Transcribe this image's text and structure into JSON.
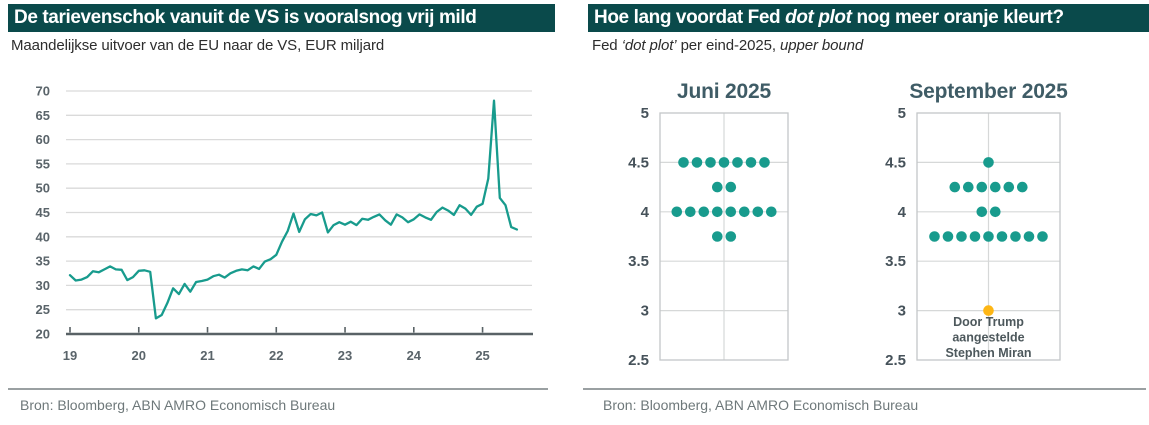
{
  "colors": {
    "header_bg": "#0a4a4b",
    "accent_teal": "#189b8d",
    "highlight_orange": "#fdb615",
    "gridline": "#dadada",
    "axis_line": "#59626 6",
    "axis_text": "#5a646a",
    "plot_title_text": "#3f5c66"
  },
  "left_panel": {
    "title": "De tarievenschok vanuit de VS is vooralsnog vrij mild",
    "subtitle": "Maandelijkse uitvoer van de EU naar de VS, EUR miljard",
    "source": "Bron: Bloomberg, ABN AMRO Economisch Bureau"
  },
  "right_panel": {
    "title_prefix": "Hoe lang voordat Fed ",
    "title_italic": "dot plot",
    "title_suffix": " nog meer oranje kleurt?",
    "subtitle_prefix": "Fed ",
    "subtitle_italic1": "‘dot plot’",
    "subtitle_mid": " per eind-2025, ",
    "subtitle_italic2": "upper bound",
    "source": "Bron: Bloomberg, ABN AMRO Economisch Bureau"
  },
  "chart_data": [
    {
      "id": "eu-exports-line",
      "type": "line",
      "title": "Maandelijkse uitvoer van de EU naar de VS, EUR miljard",
      "unit": "EUR miljard",
      "x_start": "2019-01",
      "x_end": "2025-07",
      "xticks": [
        "19",
        "20",
        "21",
        "22",
        "23",
        "24",
        "25"
      ],
      "yticks": [
        20,
        25,
        30,
        35,
        40,
        45,
        50,
        55,
        60,
        65,
        70
      ],
      "ylim": [
        20,
        70
      ],
      "grid": "horizontal",
      "legend": "none",
      "line_color": "#189b8d",
      "values": [
        32.1,
        31.0,
        31.2,
        31.7,
        32.9,
        32.7,
        33.3,
        33.9,
        33.3,
        33.2,
        31.1,
        31.7,
        33.0,
        33.1,
        32.8,
        23.2,
        23.9,
        26.4,
        29.4,
        28.2,
        30.3,
        28.7,
        30.7,
        30.9,
        31.2,
        31.9,
        32.2,
        31.6,
        32.5,
        33.0,
        33.3,
        33.1,
        33.9,
        33.4,
        34.9,
        35.4,
        36.3,
        39.0,
        41.2,
        44.8,
        41.0,
        43.6,
        44.7,
        44.4,
        45.0,
        40.9,
        42.4,
        43.0,
        42.5,
        43.1,
        42.4,
        43.7,
        43.5,
        44.1,
        44.6,
        43.4,
        42.5,
        44.6,
        44.0,
        43.0,
        43.6,
        44.6,
        44.0,
        43.5,
        45.1,
        46.0,
        45.4,
        44.5,
        46.5,
        45.8,
        44.5,
        46.2,
        46.8,
        52.0,
        68.0,
        48.0,
        46.5,
        42.0,
        41.5
      ]
    },
    {
      "id": "fed-dot-plot-juni-2025",
      "type": "scatter",
      "title": "Juni 2025",
      "yticks": [
        2.5,
        3,
        3.5,
        4,
        4.5,
        5
      ],
      "ylim": [
        2.5,
        5
      ],
      "dot_color": "#189b8d",
      "rows": [
        {
          "rate": 4.5,
          "count": 7
        },
        {
          "rate": 4.25,
          "count": 2
        },
        {
          "rate": 4.0,
          "count": 8
        },
        {
          "rate": 3.75,
          "count": 2
        }
      ]
    },
    {
      "id": "fed-dot-plot-september-2025",
      "type": "scatter",
      "title": "September 2025",
      "yticks": [
        2.5,
        3,
        3.5,
        4,
        4.5,
        5
      ],
      "ylim": [
        2.5,
        5
      ],
      "dot_color": "#189b8d",
      "rows": [
        {
          "rate": 4.5,
          "count": 1
        },
        {
          "rate": 4.25,
          "count": 6
        },
        {
          "rate": 4.0,
          "count": 2
        },
        {
          "rate": 3.75,
          "count": 9
        },
        {
          "rate": 3.0,
          "count": 1,
          "color": "#fdb615",
          "note": "Door Trump aangestelde Stephen Miran"
        }
      ],
      "annotation": {
        "lines": [
          "Door Trump",
          "aangestelde",
          "Stephen Miran"
        ]
      }
    }
  ]
}
